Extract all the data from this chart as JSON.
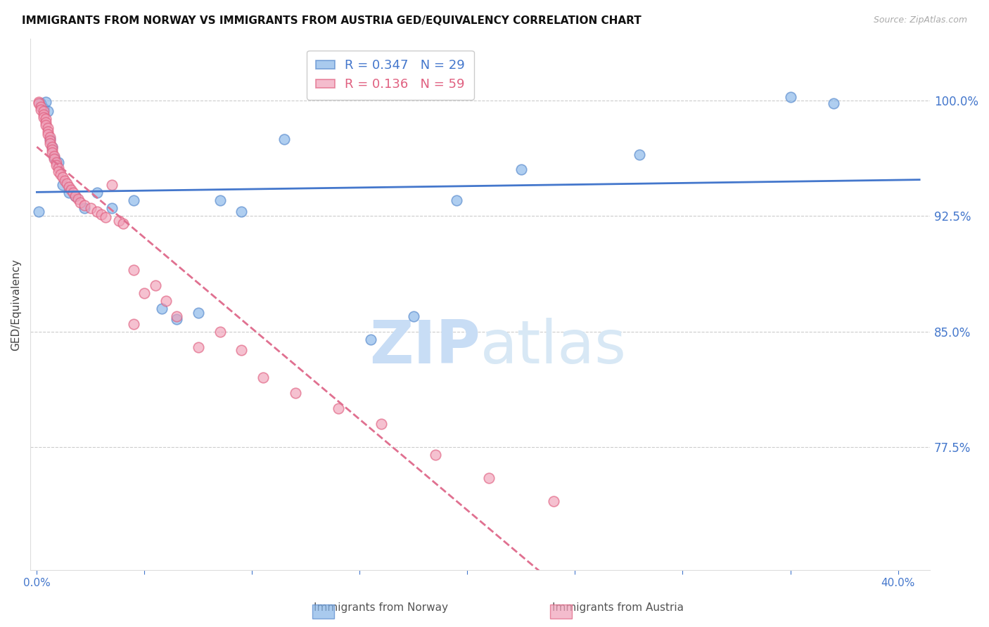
{
  "title": "IMMIGRANTS FROM NORWAY VS IMMIGRANTS FROM AUSTRIA GED/EQUIVALENCY CORRELATION CHART",
  "source": "Source: ZipAtlas.com",
  "ylabel": "GED/Equivalency",
  "y_tick_labels": [
    "100.0%",
    "92.5%",
    "85.0%",
    "77.5%"
  ],
  "y_tick_values": [
    1.0,
    0.925,
    0.85,
    0.775
  ],
  "y_min": 0.695,
  "y_max": 1.04,
  "x_min": -0.003,
  "x_max": 0.415,
  "norway_R": 0.347,
  "norway_N": 29,
  "austria_R": 0.136,
  "austria_N": 59,
  "norway_color": "#85b4e8",
  "austria_color": "#f0a0b8",
  "norway_edge_color": "#5588cc",
  "austria_edge_color": "#e06080",
  "norway_line_color": "#4477cc",
  "austria_line_color": "#e07090",
  "watermark_color": "#ddeeff",
  "norway_x": [
    0.001,
    0.002,
    0.003,
    0.004,
    0.005,
    0.006,
    0.007,
    0.008,
    0.01,
    0.012,
    0.015,
    0.018,
    0.022,
    0.028,
    0.035,
    0.045,
    0.058,
    0.065,
    0.075,
    0.085,
    0.095,
    0.115,
    0.155,
    0.175,
    0.195,
    0.225,
    0.28,
    0.35,
    0.37
  ],
  "norway_y": [
    0.928,
    0.998,
    0.995,
    0.999,
    0.993,
    0.975,
    0.97,
    0.963,
    0.96,
    0.945,
    0.94,
    0.938,
    0.93,
    0.94,
    0.93,
    0.935,
    0.865,
    0.858,
    0.862,
    0.935,
    0.928,
    0.975,
    0.845,
    0.86,
    0.935,
    0.955,
    0.965,
    1.002,
    0.998
  ],
  "austria_x": [
    0.001,
    0.001,
    0.002,
    0.002,
    0.003,
    0.003,
    0.003,
    0.004,
    0.004,
    0.004,
    0.005,
    0.005,
    0.005,
    0.006,
    0.006,
    0.006,
    0.007,
    0.007,
    0.007,
    0.008,
    0.008,
    0.009,
    0.009,
    0.01,
    0.01,
    0.011,
    0.012,
    0.013,
    0.014,
    0.015,
    0.016,
    0.017,
    0.018,
    0.019,
    0.02,
    0.022,
    0.025,
    0.028,
    0.03,
    0.032,
    0.035,
    0.038,
    0.04,
    0.045,
    0.05,
    0.06,
    0.065,
    0.075,
    0.085,
    0.095,
    0.105,
    0.12,
    0.14,
    0.16,
    0.185,
    0.21,
    0.24,
    0.045,
    0.055
  ],
  "austria_y": [
    0.999,
    0.998,
    0.996,
    0.994,
    0.993,
    0.991,
    0.989,
    0.988,
    0.986,
    0.984,
    0.982,
    0.98,
    0.978,
    0.976,
    0.974,
    0.972,
    0.97,
    0.968,
    0.966,
    0.964,
    0.962,
    0.96,
    0.958,
    0.956,
    0.954,
    0.952,
    0.95,
    0.948,
    0.946,
    0.944,
    0.942,
    0.94,
    0.938,
    0.936,
    0.934,
    0.932,
    0.93,
    0.928,
    0.926,
    0.924,
    0.945,
    0.922,
    0.92,
    0.855,
    0.875,
    0.87,
    0.86,
    0.84,
    0.85,
    0.838,
    0.82,
    0.81,
    0.8,
    0.79,
    0.77,
    0.755,
    0.74,
    0.89,
    0.88
  ]
}
